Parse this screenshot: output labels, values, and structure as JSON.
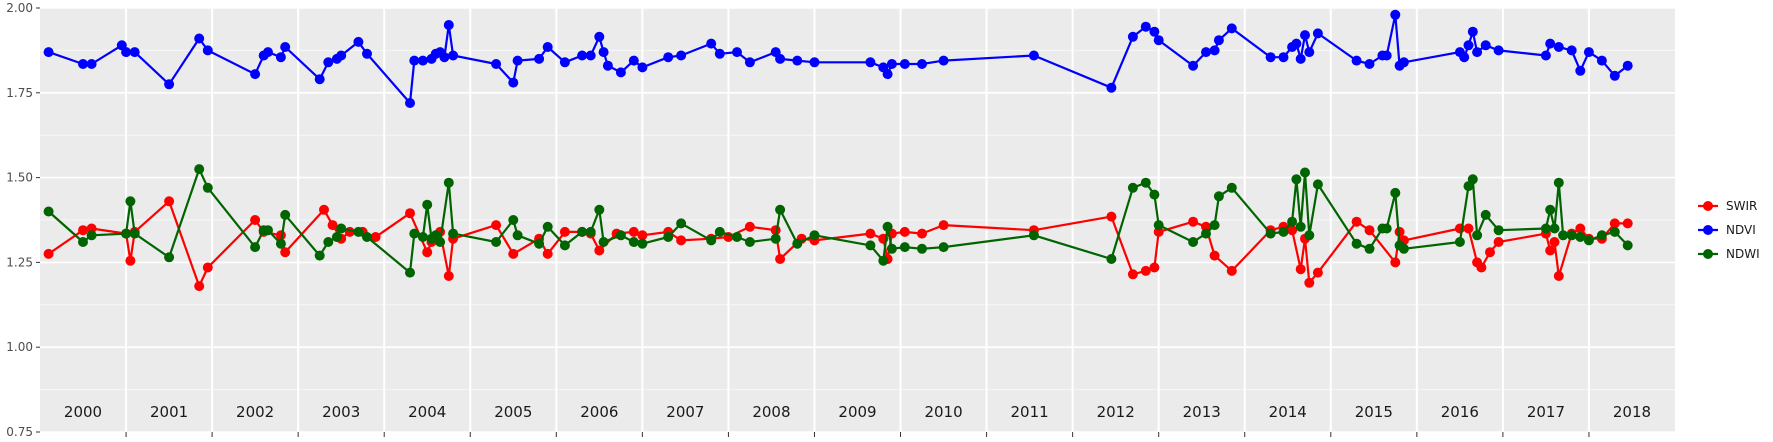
{
  "chart_data": {
    "type": "line",
    "title": "",
    "xlabel": "",
    "ylabel": "",
    "ylim": [
      0.75,
      2.0
    ],
    "yticks": [
      "0.75",
      "1.00",
      "1.25",
      "1.50",
      "1.75",
      "2.00"
    ],
    "ytick_values": [
      0.75,
      1.0,
      1.25,
      1.5,
      1.75,
      2.0
    ],
    "xlim": [
      2000,
      2019
    ],
    "year_labels": [
      "2000",
      "2001",
      "2002",
      "2003",
      "2004",
      "2005",
      "2006",
      "2007",
      "2008",
      "2009",
      "2010",
      "2011",
      "2012",
      "2013",
      "2014",
      "2015",
      "2016",
      "2017",
      "2018"
    ],
    "grid": true,
    "legend_position": "right",
    "series": [
      {
        "name": "SWIR",
        "color": "#ff0000",
        "points": [
          [
            2000.1,
            1.275
          ],
          [
            2000.5,
            1.345
          ],
          [
            2000.6,
            1.35
          ],
          [
            2001.0,
            1.335
          ],
          [
            2001.05,
            1.255
          ],
          [
            2001.1,
            1.34
          ],
          [
            2001.5,
            1.43
          ],
          [
            2001.85,
            1.18
          ],
          [
            2001.95,
            1.235
          ],
          [
            2002.5,
            1.375
          ],
          [
            2002.6,
            1.34
          ],
          [
            2002.8,
            1.33
          ],
          [
            2002.85,
            1.28
          ],
          [
            2003.3,
            1.405
          ],
          [
            2003.4,
            1.36
          ],
          [
            2003.5,
            1.32
          ],
          [
            2003.6,
            1.34
          ],
          [
            2003.75,
            1.34
          ],
          [
            2003.9,
            1.325
          ],
          [
            2004.3,
            1.395
          ],
          [
            2004.5,
            1.28
          ],
          [
            2004.55,
            1.31
          ],
          [
            2004.65,
            1.34
          ],
          [
            2004.75,
            1.21
          ],
          [
            2004.8,
            1.32
          ],
          [
            2005.3,
            1.36
          ],
          [
            2005.5,
            1.275
          ],
          [
            2005.8,
            1.32
          ],
          [
            2005.9,
            1.275
          ],
          [
            2006.1,
            1.34
          ],
          [
            2006.3,
            1.34
          ],
          [
            2006.4,
            1.335
          ],
          [
            2006.5,
            1.285
          ],
          [
            2006.7,
            1.335
          ],
          [
            2006.9,
            1.34
          ],
          [
            2007.0,
            1.33
          ],
          [
            2007.3,
            1.34
          ],
          [
            2007.45,
            1.315
          ],
          [
            2007.8,
            1.32
          ],
          [
            2008.0,
            1.325
          ],
          [
            2008.25,
            1.355
          ],
          [
            2008.55,
            1.345
          ],
          [
            2008.6,
            1.26
          ],
          [
            2008.85,
            1.32
          ],
          [
            2009.0,
            1.315
          ],
          [
            2009.65,
            1.335
          ],
          [
            2009.8,
            1.32
          ],
          [
            2009.85,
            1.26
          ],
          [
            2009.9,
            1.335
          ],
          [
            2010.05,
            1.34
          ],
          [
            2010.25,
            1.335
          ],
          [
            2010.5,
            1.36
          ],
          [
            2011.55,
            1.345
          ],
          [
            2012.45,
            1.385
          ],
          [
            2012.7,
            1.215
          ],
          [
            2012.85,
            1.225
          ],
          [
            2012.95,
            1.235
          ],
          [
            2013.0,
            1.34
          ],
          [
            2013.4,
            1.37
          ],
          [
            2013.55,
            1.355
          ],
          [
            2013.65,
            1.27
          ],
          [
            2013.85,
            1.225
          ],
          [
            2014.3,
            1.345
          ],
          [
            2014.45,
            1.355
          ],
          [
            2014.55,
            1.345
          ],
          [
            2014.65,
            1.23
          ],
          [
            2014.7,
            1.32
          ],
          [
            2014.75,
            1.19
          ],
          [
            2014.85,
            1.22
          ],
          [
            2015.3,
            1.37
          ],
          [
            2015.45,
            1.345
          ],
          [
            2015.75,
            1.25
          ],
          [
            2015.8,
            1.34
          ],
          [
            2015.85,
            1.315
          ],
          [
            2016.5,
            1.35
          ],
          [
            2016.6,
            1.35
          ],
          [
            2016.7,
            1.25
          ],
          [
            2016.75,
            1.235
          ],
          [
            2016.85,
            1.28
          ],
          [
            2016.95,
            1.31
          ],
          [
            2017.5,
            1.335
          ],
          [
            2017.55,
            1.285
          ],
          [
            2017.6,
            1.31
          ],
          [
            2017.65,
            1.21
          ],
          [
            2017.8,
            1.335
          ],
          [
            2017.9,
            1.35
          ],
          [
            2018.0,
            1.32
          ],
          [
            2018.15,
            1.32
          ],
          [
            2018.3,
            1.365
          ],
          [
            2018.45,
            1.365
          ]
        ]
      },
      {
        "name": "NDVI",
        "color": "#0000ff",
        "points": [
          [
            2000.1,
            1.87
          ],
          [
            2000.5,
            1.835
          ],
          [
            2000.6,
            1.835
          ],
          [
            2000.95,
            1.89
          ],
          [
            2001.0,
            1.87
          ],
          [
            2001.1,
            1.87
          ],
          [
            2001.5,
            1.775
          ],
          [
            2001.85,
            1.91
          ],
          [
            2001.95,
            1.875
          ],
          [
            2002.5,
            1.805
          ],
          [
            2002.6,
            1.86
          ],
          [
            2002.65,
            1.87
          ],
          [
            2002.8,
            1.855
          ],
          [
            2002.85,
            1.885
          ],
          [
            2003.25,
            1.79
          ],
          [
            2003.35,
            1.84
          ],
          [
            2003.45,
            1.85
          ],
          [
            2003.5,
            1.86
          ],
          [
            2003.7,
            1.9
          ],
          [
            2003.8,
            1.865
          ],
          [
            2004.3,
            1.72
          ],
          [
            2004.35,
            1.845
          ],
          [
            2004.45,
            1.845
          ],
          [
            2004.55,
            1.85
          ],
          [
            2004.6,
            1.865
          ],
          [
            2004.65,
            1.87
          ],
          [
            2004.7,
            1.855
          ],
          [
            2004.75,
            1.95
          ],
          [
            2004.8,
            1.86
          ],
          [
            2005.3,
            1.835
          ],
          [
            2005.5,
            1.78
          ],
          [
            2005.55,
            1.845
          ],
          [
            2005.8,
            1.85
          ],
          [
            2005.9,
            1.885
          ],
          [
            2006.1,
            1.84
          ],
          [
            2006.3,
            1.86
          ],
          [
            2006.4,
            1.86
          ],
          [
            2006.5,
            1.915
          ],
          [
            2006.55,
            1.87
          ],
          [
            2006.6,
            1.83
          ],
          [
            2006.75,
            1.81
          ],
          [
            2006.9,
            1.845
          ],
          [
            2007.0,
            1.825
          ],
          [
            2007.3,
            1.855
          ],
          [
            2007.45,
            1.86
          ],
          [
            2007.8,
            1.895
          ],
          [
            2007.9,
            1.865
          ],
          [
            2008.1,
            1.87
          ],
          [
            2008.25,
            1.84
          ],
          [
            2008.55,
            1.87
          ],
          [
            2008.6,
            1.85
          ],
          [
            2008.8,
            1.845
          ],
          [
            2009.0,
            1.84
          ],
          [
            2009.65,
            1.84
          ],
          [
            2009.8,
            1.825
          ],
          [
            2009.85,
            1.805
          ],
          [
            2009.9,
            1.835
          ],
          [
            2010.05,
            1.835
          ],
          [
            2010.25,
            1.835
          ],
          [
            2010.5,
            1.845
          ],
          [
            2011.55,
            1.86
          ],
          [
            2012.45,
            1.765
          ],
          [
            2012.7,
            1.915
          ],
          [
            2012.85,
            1.945
          ],
          [
            2012.95,
            1.93
          ],
          [
            2013.0,
            1.905
          ],
          [
            2013.4,
            1.83
          ],
          [
            2013.55,
            1.87
          ],
          [
            2013.65,
            1.875
          ],
          [
            2013.7,
            1.905
          ],
          [
            2013.85,
            1.94
          ],
          [
            2014.3,
            1.855
          ],
          [
            2014.45,
            1.855
          ],
          [
            2014.55,
            1.885
          ],
          [
            2014.6,
            1.895
          ],
          [
            2014.65,
            1.85
          ],
          [
            2014.7,
            1.92
          ],
          [
            2014.75,
            1.87
          ],
          [
            2014.85,
            1.925
          ],
          [
            2015.3,
            1.845
          ],
          [
            2015.45,
            1.835
          ],
          [
            2015.6,
            1.86
          ],
          [
            2015.65,
            1.86
          ],
          [
            2015.75,
            1.98
          ],
          [
            2015.8,
            1.83
          ],
          [
            2015.85,
            1.84
          ],
          [
            2016.5,
            1.87
          ],
          [
            2016.55,
            1.855
          ],
          [
            2016.6,
            1.89
          ],
          [
            2016.65,
            1.93
          ],
          [
            2016.7,
            1.87
          ],
          [
            2016.8,
            1.89
          ],
          [
            2016.95,
            1.875
          ],
          [
            2017.5,
            1.86
          ],
          [
            2017.55,
            1.895
          ],
          [
            2017.65,
            1.885
          ],
          [
            2017.8,
            1.875
          ],
          [
            2017.9,
            1.815
          ],
          [
            2018.0,
            1.87
          ],
          [
            2018.15,
            1.845
          ],
          [
            2018.3,
            1.8
          ],
          [
            2018.45,
            1.83
          ]
        ]
      },
      {
        "name": "NDWI",
        "color": "#006400",
        "points": [
          [
            2000.1,
            1.4
          ],
          [
            2000.5,
            1.31
          ],
          [
            2000.6,
            1.33
          ],
          [
            2001.0,
            1.335
          ],
          [
            2001.05,
            1.43
          ],
          [
            2001.1,
            1.335
          ],
          [
            2001.5,
            1.265
          ],
          [
            2001.85,
            1.525
          ],
          [
            2001.95,
            1.47
          ],
          [
            2002.5,
            1.295
          ],
          [
            2002.6,
            1.345
          ],
          [
            2002.65,
            1.345
          ],
          [
            2002.8,
            1.305
          ],
          [
            2002.85,
            1.39
          ],
          [
            2003.25,
            1.27
          ],
          [
            2003.35,
            1.31
          ],
          [
            2003.45,
            1.325
          ],
          [
            2003.5,
            1.35
          ],
          [
            2003.7,
            1.34
          ],
          [
            2003.8,
            1.325
          ],
          [
            2004.3,
            1.22
          ],
          [
            2004.35,
            1.335
          ],
          [
            2004.45,
            1.325
          ],
          [
            2004.5,
            1.42
          ],
          [
            2004.55,
            1.32
          ],
          [
            2004.6,
            1.33
          ],
          [
            2004.65,
            1.31
          ],
          [
            2004.75,
            1.485
          ],
          [
            2004.8,
            1.335
          ],
          [
            2005.3,
            1.31
          ],
          [
            2005.5,
            1.375
          ],
          [
            2005.55,
            1.33
          ],
          [
            2005.8,
            1.305
          ],
          [
            2005.9,
            1.355
          ],
          [
            2006.1,
            1.3
          ],
          [
            2006.3,
            1.34
          ],
          [
            2006.4,
            1.34
          ],
          [
            2006.5,
            1.405
          ],
          [
            2006.55,
            1.31
          ],
          [
            2006.75,
            1.33
          ],
          [
            2006.9,
            1.31
          ],
          [
            2007.0,
            1.305
          ],
          [
            2007.3,
            1.325
          ],
          [
            2007.45,
            1.365
          ],
          [
            2007.8,
            1.315
          ],
          [
            2007.9,
            1.34
          ],
          [
            2008.1,
            1.325
          ],
          [
            2008.25,
            1.31
          ],
          [
            2008.55,
            1.32
          ],
          [
            2008.6,
            1.405
          ],
          [
            2008.8,
            1.305
          ],
          [
            2009.0,
            1.33
          ],
          [
            2009.65,
            1.3
          ],
          [
            2009.8,
            1.255
          ],
          [
            2009.85,
            1.355
          ],
          [
            2009.9,
            1.29
          ],
          [
            2010.05,
            1.295
          ],
          [
            2010.25,
            1.29
          ],
          [
            2010.5,
            1.295
          ],
          [
            2011.55,
            1.33
          ],
          [
            2012.45,
            1.26
          ],
          [
            2012.7,
            1.47
          ],
          [
            2012.85,
            1.485
          ],
          [
            2012.95,
            1.45
          ],
          [
            2013.0,
            1.36
          ],
          [
            2013.4,
            1.31
          ],
          [
            2013.55,
            1.335
          ],
          [
            2013.65,
            1.36
          ],
          [
            2013.7,
            1.445
          ],
          [
            2013.85,
            1.47
          ],
          [
            2014.3,
            1.335
          ],
          [
            2014.45,
            1.34
          ],
          [
            2014.55,
            1.37
          ],
          [
            2014.6,
            1.495
          ],
          [
            2014.65,
            1.355
          ],
          [
            2014.7,
            1.515
          ],
          [
            2014.75,
            1.33
          ],
          [
            2014.85,
            1.48
          ],
          [
            2015.3,
            1.305
          ],
          [
            2015.45,
            1.29
          ],
          [
            2015.6,
            1.35
          ],
          [
            2015.65,
            1.35
          ],
          [
            2015.75,
            1.455
          ],
          [
            2015.8,
            1.3
          ],
          [
            2015.85,
            1.29
          ],
          [
            2016.5,
            1.31
          ],
          [
            2016.6,
            1.475
          ],
          [
            2016.65,
            1.495
          ],
          [
            2016.7,
            1.33
          ],
          [
            2016.8,
            1.39
          ],
          [
            2016.95,
            1.345
          ],
          [
            2017.5,
            1.35
          ],
          [
            2017.55,
            1.405
          ],
          [
            2017.6,
            1.35
          ],
          [
            2017.65,
            1.485
          ],
          [
            2017.7,
            1.33
          ],
          [
            2017.8,
            1.33
          ],
          [
            2017.9,
            1.325
          ],
          [
            2018.0,
            1.315
          ],
          [
            2018.15,
            1.33
          ],
          [
            2018.3,
            1.34
          ],
          [
            2018.45,
            1.3
          ]
        ]
      }
    ]
  }
}
